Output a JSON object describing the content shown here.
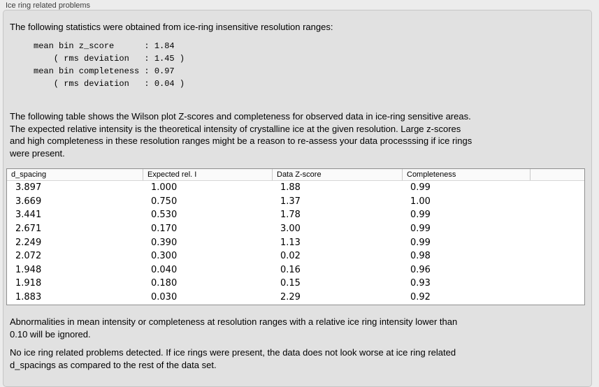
{
  "panel": {
    "label": "Ice ring related problems"
  },
  "intro": {
    "text": "The following statistics were obtained from ice-ring insensitive resolution ranges:"
  },
  "stats": {
    "text": "mean bin z_score      : 1.84\n    ( rms deviation   : 1.45 )\nmean bin completeness : 0.97\n    ( rms deviation   : 0.04 )"
  },
  "description": {
    "text": "The following table shows the Wilson plot Z-scores and completeness for observed data in ice-ring sensitive areas.\nThe expected relative intensity is the theoretical intensity of crystalline ice at the given resolution. Large z-scores\nand high completeness in these resolution ranges might be a reason to re-assess your data processsing if ice rings\nwere present."
  },
  "table": {
    "columns": [
      "d_spacing",
      "Expected rel. I",
      "Data Z-score",
      "Completeness"
    ],
    "rows": [
      [
        "3.897",
        "1.000",
        "1.88",
        "0.99"
      ],
      [
        "3.669",
        "0.750",
        "1.37",
        "1.00"
      ],
      [
        "3.441",
        "0.530",
        "1.78",
        "0.99"
      ],
      [
        "2.671",
        "0.170",
        "3.00",
        "0.99"
      ],
      [
        "2.249",
        "0.390",
        "1.13",
        "0.99"
      ],
      [
        "2.072",
        "0.300",
        "0.02",
        "0.98"
      ],
      [
        "1.948",
        "0.040",
        "0.16",
        "0.96"
      ],
      [
        "1.918",
        "0.180",
        "0.15",
        "0.93"
      ],
      [
        "1.883",
        "0.030",
        "2.29",
        "0.92"
      ]
    ]
  },
  "notes": {
    "ignore_rule": "Abnormalities in mean intensity or completeness at resolution ranges with a relative ice ring intensity lower than\n0.10 will be ignored.",
    "conclusion": "No ice ring related problems detected. If ice rings were present, the data does not look worse at ice ring related\nd_spacings as compared to the rest of the data set."
  },
  "colors": {
    "window_bg": "#ececec",
    "panel_bg": "#e1e1e1",
    "table_border": "#8f8f8f"
  }
}
